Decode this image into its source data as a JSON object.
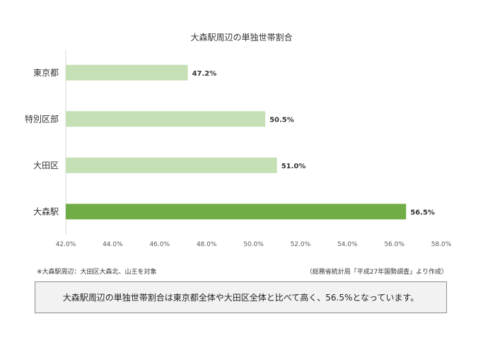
{
  "chart_data": {
    "type": "bar",
    "orientation": "horizontal",
    "title": "大森駅周辺の単独世帯割合",
    "categories": [
      "東京都",
      "特別区部",
      "大田区",
      "大森駅"
    ],
    "values": [
      47.2,
      50.5,
      51.0,
      56.5
    ],
    "value_labels": [
      "47.2%",
      "50.5%",
      "51.0%",
      "56.5%"
    ],
    "xlim": [
      42.0,
      58.0
    ],
    "x_ticks": [
      42.0,
      44.0,
      46.0,
      48.0,
      50.0,
      52.0,
      54.0,
      56.0,
      58.0
    ],
    "x_tick_labels": [
      "42.0%",
      "44.0%",
      "46.0%",
      "48.0%",
      "50.0%",
      "52.0%",
      "54.0%",
      "56.0%",
      "58.0%"
    ],
    "grid": false,
    "colors": {
      "default_bar": "#c5e0b4",
      "highlight_bar": "#70ad47",
      "axis": "#d9d9d9",
      "tick_text": "#595959",
      "label_text": "#333333"
    },
    "highlight_index": 3
  },
  "notes": {
    "left": "※大森駅周辺：大田区大森北、山王を対象",
    "right": "（総務省統計局「平成27年国勢調査」より作成）"
  },
  "summary": "大森駅周辺の単独世帯割合は東京都全体や大田区全体と比べて高く、56.5%となっています。"
}
